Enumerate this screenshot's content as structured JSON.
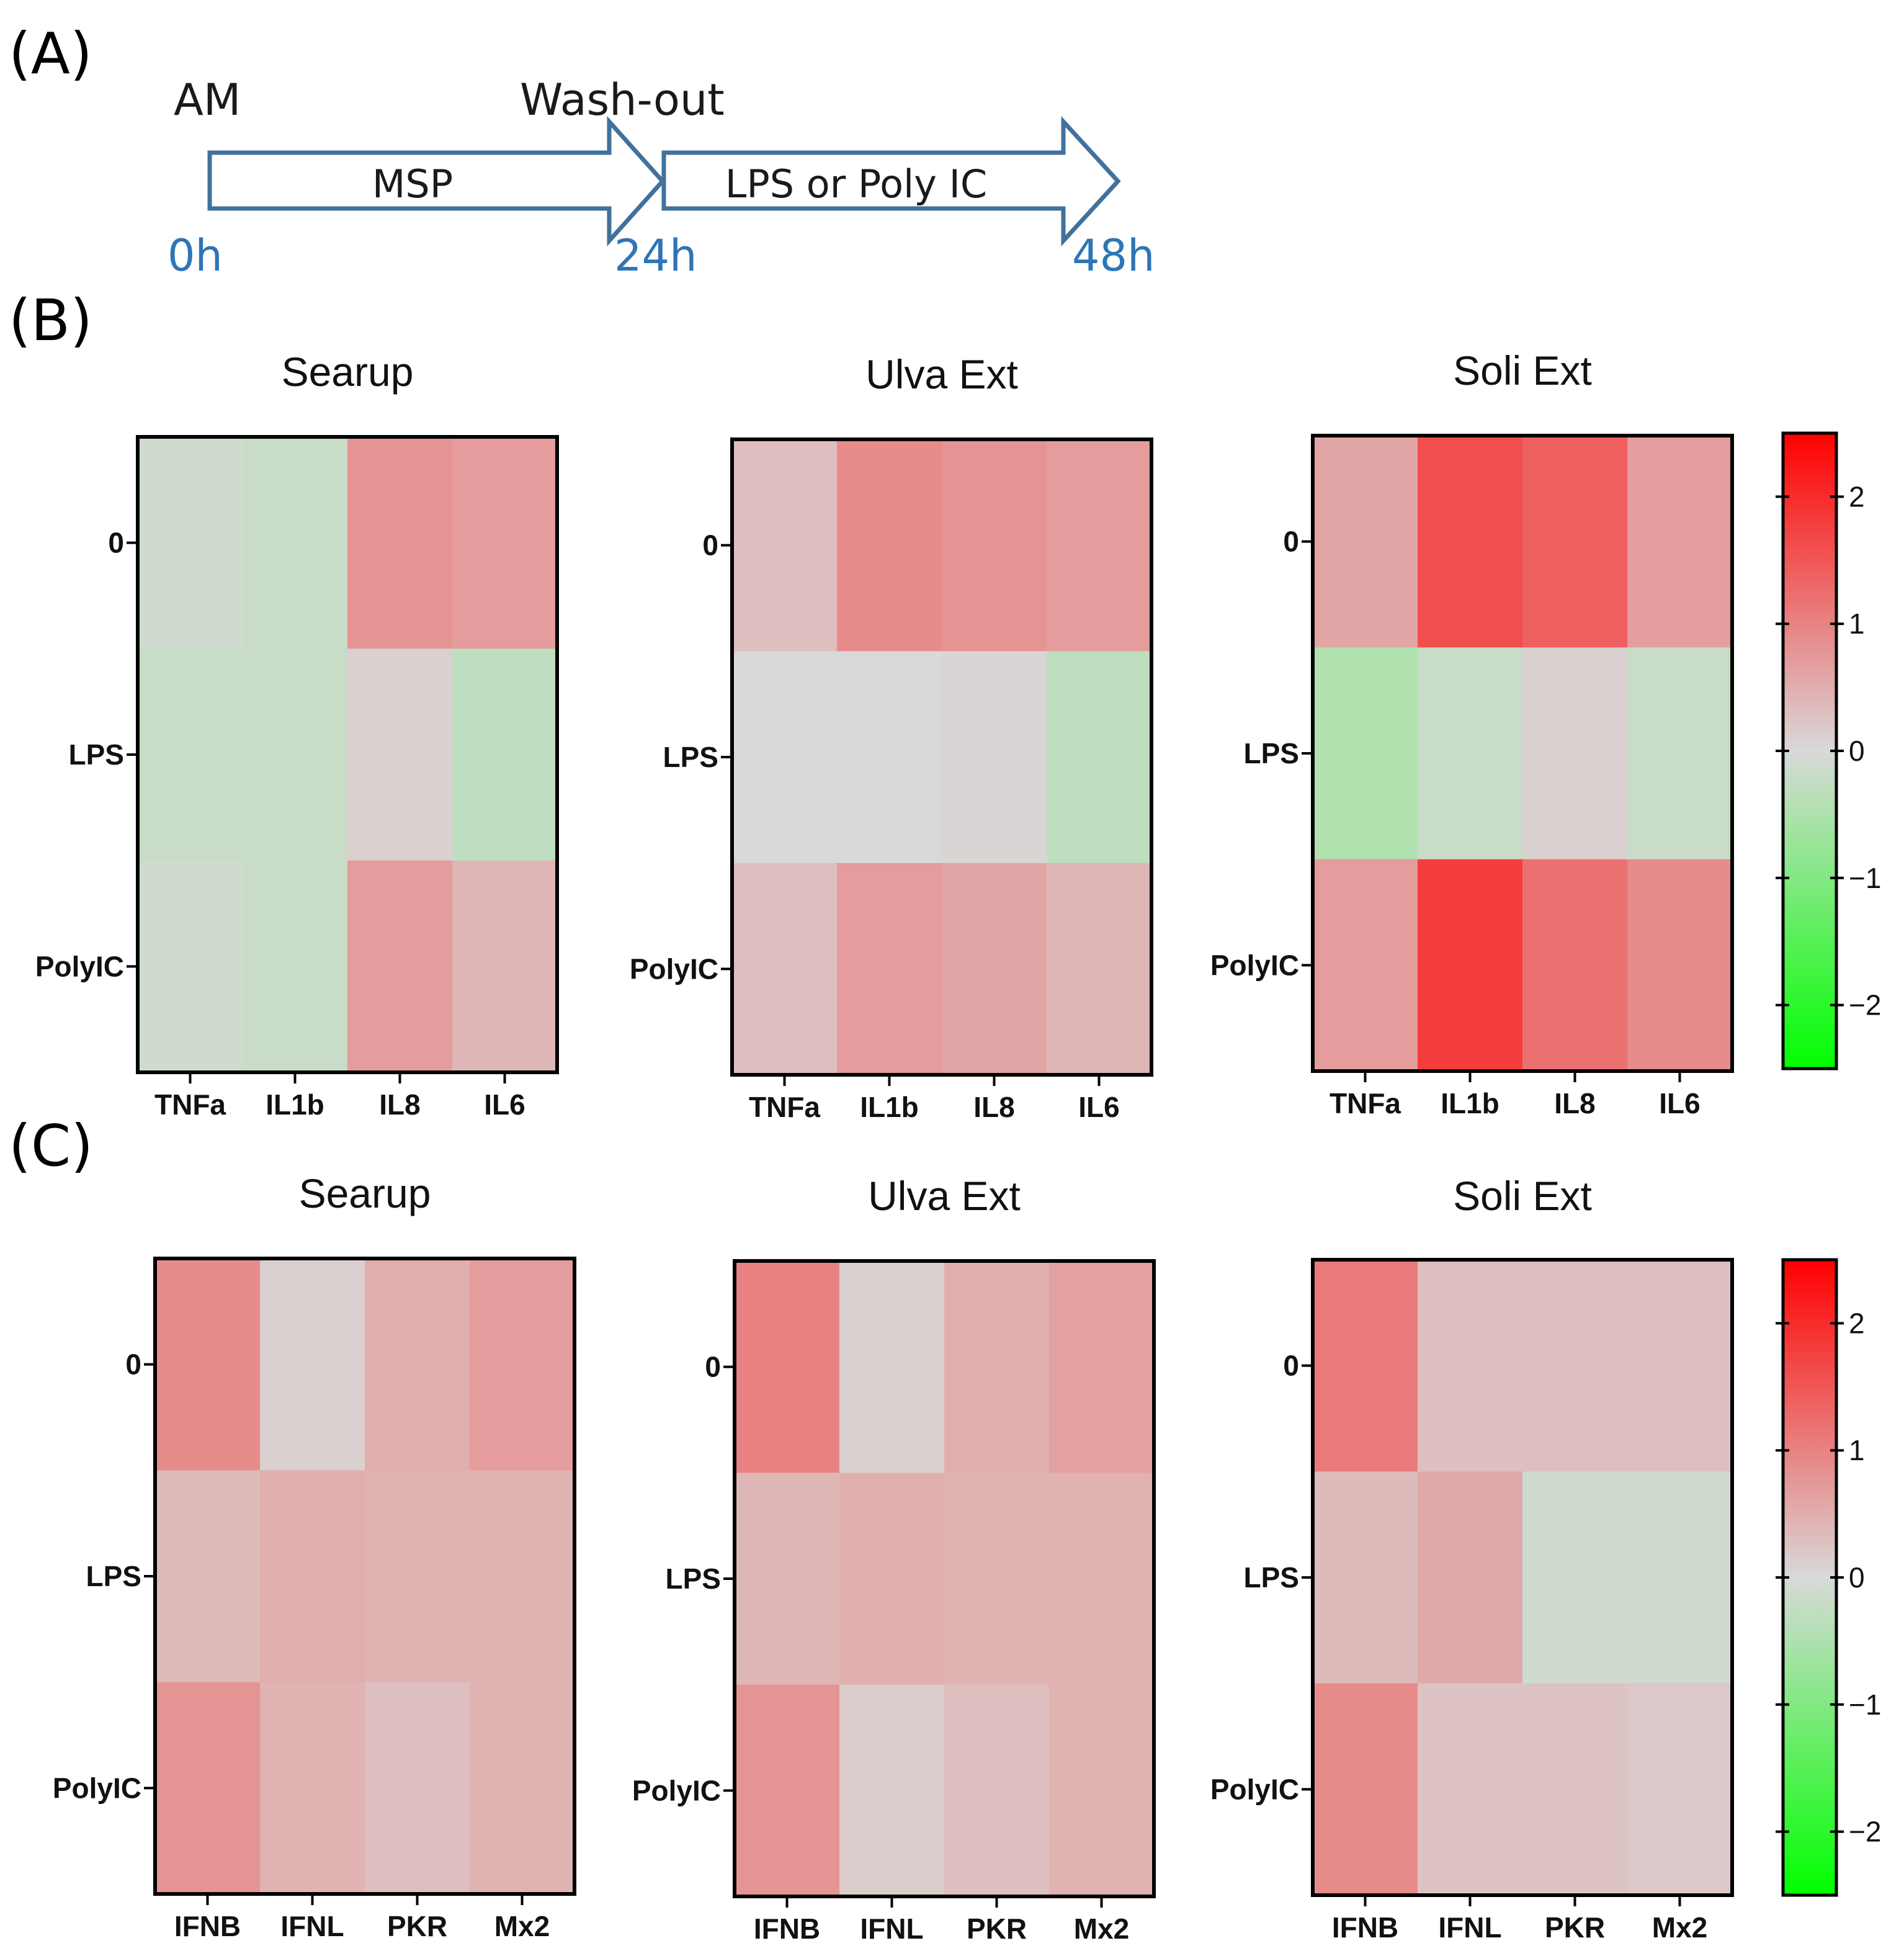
{
  "panel_labels": [
    "(A)",
    "(B)",
    "(C)"
  ],
  "timeline": {
    "start_label": "AM",
    "washout_label": "Wash-out",
    "arrow1_label": "MSP",
    "arrow2_label": "LPS or Poly IC",
    "times": [
      "0h",
      "24h",
      "48h"
    ],
    "time_color": "#2e75b6",
    "arrow_stroke": "#41719c"
  },
  "colors": {
    "low": "#00ff00",
    "mid": "#d9d9d9",
    "high": "#ff0000"
  },
  "chart_data": [
    {
      "type": "heatmap",
      "panel": "B",
      "title": "Searup",
      "rows": [
        "0",
        "LPS",
        "PolyIC"
      ],
      "columns": [
        "TNFa",
        "IL1b",
        "IL8",
        "IL6"
      ],
      "values": [
        [
          -0.1,
          -0.2,
          0.8,
          0.7
        ],
        [
          -0.2,
          -0.2,
          0.1,
          -0.3
        ],
        [
          -0.1,
          -0.2,
          0.7,
          0.4
        ]
      ],
      "scale": [
        -2.5,
        2.5
      ]
    },
    {
      "type": "heatmap",
      "panel": "B",
      "title": "Ulva Ext",
      "rows": [
        "0",
        "LPS",
        "PolyIC"
      ],
      "columns": [
        "TNFa",
        "IL1b",
        "IL8",
        "IL6"
      ],
      "values": [
        [
          0.3,
          0.9,
          0.8,
          0.7
        ],
        [
          0.0,
          0.0,
          0.05,
          -0.3
        ],
        [
          0.3,
          0.7,
          0.6,
          0.4
        ]
      ],
      "scale": [
        -2.5,
        2.5
      ]
    },
    {
      "type": "heatmap",
      "panel": "B",
      "title": "Soli Ext",
      "rows": [
        "0",
        "LPS",
        "PolyIC"
      ],
      "columns": [
        "TNFa",
        "IL1b",
        "IL8",
        "IL6"
      ],
      "values": [
        [
          0.6,
          1.6,
          1.4,
          0.7
        ],
        [
          -0.5,
          -0.2,
          0.1,
          -0.2
        ],
        [
          0.7,
          1.8,
          1.2,
          0.9
        ]
      ],
      "scale": [
        -2.5,
        2.5
      ]
    },
    {
      "type": "heatmap",
      "panel": "C",
      "title": "Searup",
      "rows": [
        "0",
        "LPS",
        "PolyIC"
      ],
      "columns": [
        "IFNB",
        "IFNL",
        "PKR",
        "Mx2"
      ],
      "values": [
        [
          0.9,
          0.1,
          0.5,
          0.7
        ],
        [
          0.35,
          0.5,
          0.45,
          0.45
        ],
        [
          0.8,
          0.45,
          0.3,
          0.45
        ]
      ],
      "scale": [
        -2.5,
        2.5
      ]
    },
    {
      "type": "heatmap",
      "panel": "C",
      "title": "Ulva Ext",
      "rows": [
        "0",
        "LPS",
        "PolyIC"
      ],
      "columns": [
        "IFNB",
        "IFNL",
        "PKR",
        "Mx2"
      ],
      "values": [
        [
          1.0,
          0.1,
          0.5,
          0.65
        ],
        [
          0.4,
          0.5,
          0.45,
          0.45
        ],
        [
          0.8,
          0.15,
          0.3,
          0.45
        ]
      ],
      "scale": [
        -2.5,
        2.5
      ]
    },
    {
      "type": "heatmap",
      "panel": "C",
      "title": "Soli  Ext",
      "rows": [
        "0",
        "LPS",
        "PolyIC"
      ],
      "columns": [
        "IFNB",
        "IFNL",
        "PKR",
        "Mx2"
      ],
      "values": [
        [
          1.1,
          0.3,
          0.3,
          0.3
        ],
        [
          0.35,
          0.55,
          -0.1,
          -0.1
        ],
        [
          0.9,
          0.25,
          0.25,
          0.2
        ]
      ],
      "scale": [
        -2.5,
        2.5
      ]
    }
  ],
  "colorbars": [
    {
      "panel": "B",
      "ticks": [
        "2",
        "1",
        "0",
        "−1",
        "−2"
      ],
      "tick_values": [
        2,
        1,
        0,
        -1,
        -2
      ],
      "range": [
        -2.5,
        2.5
      ]
    },
    {
      "panel": "C",
      "ticks": [
        "2",
        "1",
        "0",
        "−1",
        "−2"
      ],
      "tick_values": [
        2,
        1,
        0,
        -1,
        -2
      ],
      "range": [
        -2.5,
        2.5
      ]
    }
  ]
}
